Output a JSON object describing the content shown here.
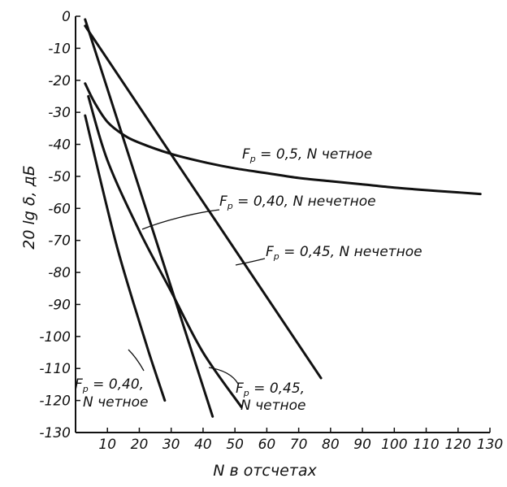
{
  "chart_data": {
    "type": "line",
    "xlabel": "N в отсчетах",
    "ylabel": "20 lg δ, дБ",
    "xlim": [
      0,
      130
    ],
    "ylim": [
      -130,
      0
    ],
    "x_ticks": [
      "10",
      "20",
      "30",
      "40",
      "50",
      "60",
      "70",
      "80",
      "90",
      "100",
      "110",
      "120",
      "130"
    ],
    "y_ticks": [
      "0",
      "-10",
      "-20",
      "-30",
      "-40",
      "-50",
      "-60",
      "-70",
      "-80",
      "-90",
      "-100",
      "-110",
      "-120",
      "-130"
    ],
    "grid": false,
    "series": [
      {
        "name": "F_p = 0,5, N четное",
        "curve": "smooth",
        "points": [
          [
            3,
            -21
          ],
          [
            6,
            -27
          ],
          [
            10,
            -33
          ],
          [
            15,
            -37
          ],
          [
            20,
            -39.5
          ],
          [
            30,
            -43
          ],
          [
            40,
            -45.5
          ],
          [
            50,
            -47.5
          ],
          [
            60,
            -49
          ],
          [
            70,
            -50.5
          ],
          [
            80,
            -51.5
          ],
          [
            90,
            -52.5
          ],
          [
            100,
            -53.5
          ],
          [
            110,
            -54.3
          ],
          [
            120,
            -55
          ],
          [
            127,
            -55.5
          ]
        ]
      },
      {
        "name": "F_p = 0,40, N нечетное",
        "curve": "linear",
        "points": [
          [
            3,
            -1
          ],
          [
            43,
            -125
          ]
        ]
      },
      {
        "name": "F_p = 0,45, N нечетное",
        "curve": "linear",
        "points": [
          [
            3,
            -3
          ],
          [
            77,
            -113
          ]
        ]
      },
      {
        "name": "F_p = 0,40, N четное",
        "curve": "smooth",
        "points": [
          [
            3,
            -31
          ],
          [
            8,
            -52
          ],
          [
            13,
            -72
          ],
          [
            18,
            -89
          ],
          [
            23,
            -105
          ],
          [
            28,
            -120
          ]
        ]
      },
      {
        "name": "F_p = 0,45, N четное",
        "curve": "smooth",
        "points": [
          [
            4,
            -25
          ],
          [
            10,
            -45
          ],
          [
            20,
            -67
          ],
          [
            30,
            -86
          ],
          [
            40,
            -105
          ],
          [
            52,
            -122
          ]
        ]
      }
    ],
    "annotations": [
      {
        "id": "a05",
        "main": "F",
        "sub": "p",
        "rest": " = 0,5, N четное"
      },
      {
        "id": "a40n",
        "main": "F",
        "sub": "p",
        "rest": " = 0,40, N нечетное"
      },
      {
        "id": "a45n",
        "main": "F",
        "sub": "p",
        "rest": " = 0,45, N нечетное"
      },
      {
        "id": "a40e",
        "main": "F",
        "sub": "p",
        "rest": " = 0,40,",
        "line2": "N четное"
      },
      {
        "id": "a45e",
        "main": "F",
        "sub": "p",
        "rest": " = 0,45,",
        "line2": "N четное"
      }
    ]
  }
}
